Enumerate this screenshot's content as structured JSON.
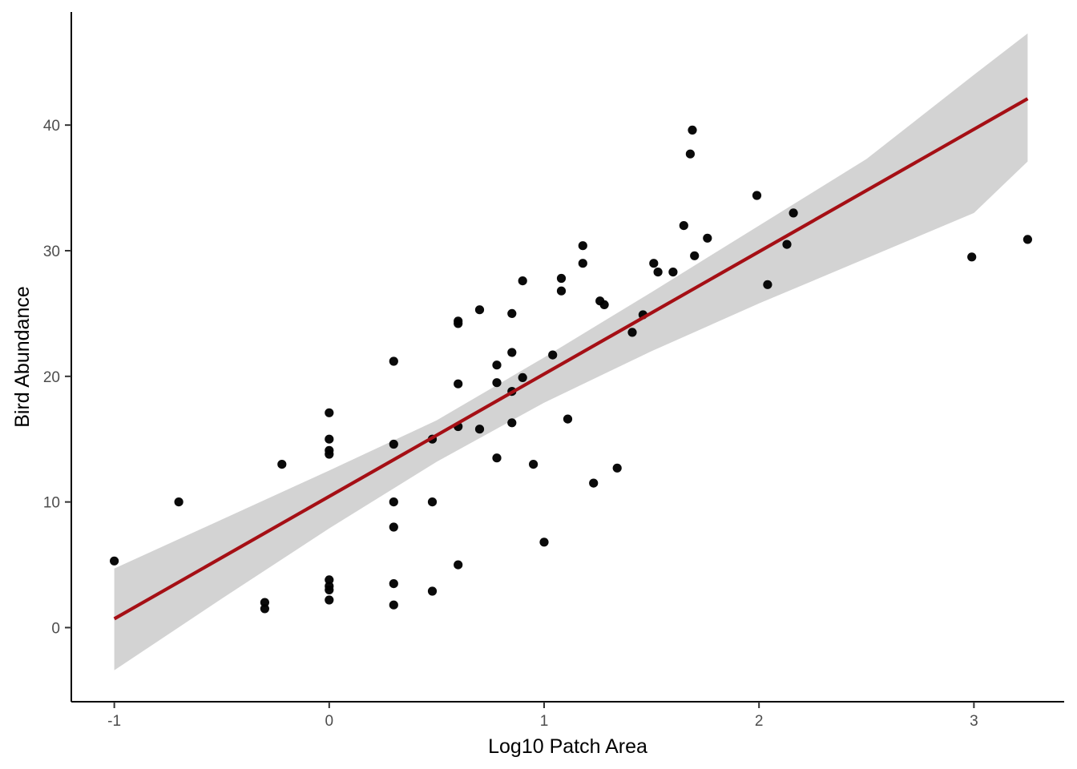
{
  "chart_data": {
    "type": "scatter",
    "title": "",
    "xlabel": "Log10 Patch Area",
    "ylabel": "Bird Abundance",
    "xlim": [
      -1.2,
      3.42
    ],
    "ylim": [
      -5.9,
      49
    ],
    "x_ticks": [
      -1,
      0,
      1,
      2,
      3
    ],
    "x_tick_labels": [
      "-1",
      "0",
      "1",
      "2",
      "3"
    ],
    "y_ticks": [
      0,
      10,
      20,
      30,
      40
    ],
    "y_tick_labels": [
      "0",
      "10",
      "20",
      "30",
      "40"
    ],
    "grid": false,
    "legend": "none",
    "points": [
      {
        "x": -1.0,
        "y": 5.3
      },
      {
        "x": -0.7,
        "y": 10.0
      },
      {
        "x": -0.3,
        "y": 2.0
      },
      {
        "x": -0.3,
        "y": 1.5
      },
      {
        "x": -0.22,
        "y": 13.0
      },
      {
        "x": 0.0,
        "y": 17.1
      },
      {
        "x": 0.0,
        "y": 15.0
      },
      {
        "x": 0.0,
        "y": 14.1
      },
      {
        "x": 0.0,
        "y": 13.8
      },
      {
        "x": 0.0,
        "y": 3.8
      },
      {
        "x": 0.0,
        "y": 3.3
      },
      {
        "x": 0.0,
        "y": 3.0
      },
      {
        "x": 0.0,
        "y": 2.2
      },
      {
        "x": 0.3,
        "y": 21.2
      },
      {
        "x": 0.3,
        "y": 14.6
      },
      {
        "x": 0.3,
        "y": 10.0
      },
      {
        "x": 0.3,
        "y": 8.0
      },
      {
        "x": 0.3,
        "y": 3.5
      },
      {
        "x": 0.3,
        "y": 1.8
      },
      {
        "x": 0.48,
        "y": 15.0
      },
      {
        "x": 0.48,
        "y": 10.0
      },
      {
        "x": 0.48,
        "y": 2.9
      },
      {
        "x": 0.6,
        "y": 24.4
      },
      {
        "x": 0.6,
        "y": 24.2
      },
      {
        "x": 0.6,
        "y": 19.4
      },
      {
        "x": 0.6,
        "y": 16.0
      },
      {
        "x": 0.6,
        "y": 5.0
      },
      {
        "x": 0.7,
        "y": 25.3
      },
      {
        "x": 0.7,
        "y": 15.8
      },
      {
        "x": 0.78,
        "y": 20.9
      },
      {
        "x": 0.78,
        "y": 19.5
      },
      {
        "x": 0.78,
        "y": 13.5
      },
      {
        "x": 0.85,
        "y": 25.0
      },
      {
        "x": 0.85,
        "y": 21.9
      },
      {
        "x": 0.85,
        "y": 18.8
      },
      {
        "x": 0.85,
        "y": 16.3
      },
      {
        "x": 0.9,
        "y": 27.6
      },
      {
        "x": 0.9,
        "y": 19.9
      },
      {
        "x": 0.95,
        "y": 13.0
      },
      {
        "x": 1.0,
        "y": 6.8
      },
      {
        "x": 1.04,
        "y": 21.7
      },
      {
        "x": 1.08,
        "y": 27.8
      },
      {
        "x": 1.08,
        "y": 26.8
      },
      {
        "x": 1.11,
        "y": 16.6
      },
      {
        "x": 1.18,
        "y": 30.4
      },
      {
        "x": 1.18,
        "y": 29.0
      },
      {
        "x": 1.23,
        "y": 11.5
      },
      {
        "x": 1.26,
        "y": 26.0
      },
      {
        "x": 1.28,
        "y": 25.7
      },
      {
        "x": 1.34,
        "y": 12.7
      },
      {
        "x": 1.41,
        "y": 23.5
      },
      {
        "x": 1.46,
        "y": 24.9
      },
      {
        "x": 1.51,
        "y": 29.0
      },
      {
        "x": 1.53,
        "y": 28.3
      },
      {
        "x": 1.6,
        "y": 28.3
      },
      {
        "x": 1.65,
        "y": 32.0
      },
      {
        "x": 1.68,
        "y": 37.7
      },
      {
        "x": 1.69,
        "y": 39.6
      },
      {
        "x": 1.7,
        "y": 29.6
      },
      {
        "x": 1.76,
        "y": 31.0
      },
      {
        "x": 1.99,
        "y": 34.4
      },
      {
        "x": 2.04,
        "y": 27.3
      },
      {
        "x": 2.13,
        "y": 30.5
      },
      {
        "x": 2.16,
        "y": 33.0
      },
      {
        "x": 2.99,
        "y": 29.5
      },
      {
        "x": 3.25,
        "y": 30.9
      }
    ],
    "fit_line": {
      "x": [
        -1.0,
        3.25
      ],
      "y": [
        0.7,
        42.1
      ],
      "color": "#a50f15"
    },
    "confidence_band": {
      "x": [
        -1.0,
        -0.5,
        0.0,
        0.5,
        1.0,
        1.5,
        2.0,
        2.5,
        3.0,
        3.25
      ],
      "lower": [
        -3.4,
        2.3,
        7.9,
        13.2,
        17.9,
        22.0,
        25.8,
        29.4,
        33.0,
        37.1
      ],
      "upper": [
        4.7,
        8.6,
        12.5,
        16.5,
        21.5,
        26.7,
        32.0,
        37.3,
        44.0,
        47.3
      ],
      "color": "#d3d3d3"
    },
    "point_color": "#000000"
  }
}
